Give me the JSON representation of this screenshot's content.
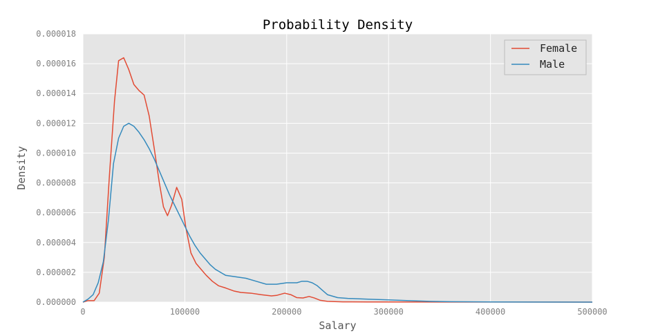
{
  "chart_data": {
    "type": "line",
    "title": "Probability Density",
    "xlabel": "Salary",
    "ylabel": "Density",
    "xlim": [
      0,
      500000
    ],
    "ylim": [
      0,
      1.8e-05
    ],
    "x_ticks": [
      0,
      100000,
      200000,
      300000,
      400000,
      500000
    ],
    "x_tick_labels": [
      "0",
      "100000",
      "200000",
      "300000",
      "400000",
      "500000"
    ],
    "y_ticks": [
      0,
      2e-06,
      4e-06,
      6e-06,
      8e-06,
      1e-05,
      1.2e-05,
      1.4e-05,
      1.6e-05,
      1.8e-05
    ],
    "y_tick_labels": [
      "0.000000",
      "0.000002",
      "0.000004",
      "0.000006",
      "0.000008",
      "0.000010",
      "0.000012",
      "0.000014",
      "0.000016",
      "0.000018"
    ],
    "grid": true,
    "legend_position": "top-right",
    "background": "#e5e5e5",
    "series": [
      {
        "name": "Female",
        "color": "#e24a33",
        "points": [
          [
            0,
            0
          ],
          [
            5000,
            1e-07
          ],
          [
            11000,
            1e-07
          ],
          [
            16000,
            6e-07
          ],
          [
            21000,
            3e-06
          ],
          [
            26000,
            8.5e-06
          ],
          [
            31000,
            1.35e-05
          ],
          [
            35000,
            1.62e-05
          ],
          [
            40000,
            1.64e-05
          ],
          [
            45000,
            1.56e-05
          ],
          [
            50000,
            1.46e-05
          ],
          [
            55000,
            1.42e-05
          ],
          [
            60000,
            1.39e-05
          ],
          [
            65000,
            1.25e-05
          ],
          [
            70000,
            1.03e-05
          ],
          [
            75000,
            8e-06
          ],
          [
            79000,
            6.4e-06
          ],
          [
            83000,
            5.8e-06
          ],
          [
            87000,
            6.5e-06
          ],
          [
            92000,
            7.7e-06
          ],
          [
            97000,
            6.9e-06
          ],
          [
            101000,
            5e-06
          ],
          [
            106000,
            3.3e-06
          ],
          [
            111000,
            2.6e-06
          ],
          [
            116000,
            2.2e-06
          ],
          [
            121000,
            1.8e-06
          ],
          [
            127000,
            1.4e-06
          ],
          [
            133000,
            1.1e-06
          ],
          [
            140000,
            9.5e-07
          ],
          [
            148000,
            7.5e-07
          ],
          [
            155000,
            6.5e-07
          ],
          [
            165000,
            6e-07
          ],
          [
            175000,
            5e-07
          ],
          [
            185000,
            4.2e-07
          ],
          [
            190000,
            4.5e-07
          ],
          [
            198000,
            6e-07
          ],
          [
            204000,
            5e-07
          ],
          [
            210000,
            3e-07
          ],
          [
            216000,
            2.8e-07
          ],
          [
            222000,
            3.8e-07
          ],
          [
            227000,
            2.8e-07
          ],
          [
            233000,
            1.2e-07
          ],
          [
            240000,
            5e-08
          ],
          [
            255000,
            2e-08
          ],
          [
            280000,
            1e-08
          ],
          [
            500000,
            0.0
          ]
        ]
      },
      {
        "name": "Male",
        "color": "#348abd",
        "points": [
          [
            0,
            0
          ],
          [
            5000,
            2e-07
          ],
          [
            10000,
            5e-07
          ],
          [
            15000,
            1.3e-06
          ],
          [
            20000,
            2.7e-06
          ],
          [
            25000,
            5.5e-06
          ],
          [
            30000,
            9.3e-06
          ],
          [
            35000,
            1.1e-05
          ],
          [
            40000,
            1.18e-05
          ],
          [
            45000,
            1.2e-05
          ],
          [
            50000,
            1.18e-05
          ],
          [
            55000,
            1.14e-05
          ],
          [
            60000,
            1.09e-05
          ],
          [
            65000,
            1.03e-05
          ],
          [
            70000,
            9.6e-06
          ],
          [
            75000,
            8.8e-06
          ],
          [
            80000,
            8e-06
          ],
          [
            85000,
            7.2e-06
          ],
          [
            90000,
            6.5e-06
          ],
          [
            95000,
            5.8e-06
          ],
          [
            100000,
            5.1e-06
          ],
          [
            105000,
            4.4e-06
          ],
          [
            110000,
            3.8e-06
          ],
          [
            115000,
            3.3e-06
          ],
          [
            120000,
            2.9e-06
          ],
          [
            125000,
            2.5e-06
          ],
          [
            130000,
            2.2e-06
          ],
          [
            135000,
            2e-06
          ],
          [
            140000,
            1.8e-06
          ],
          [
            150000,
            1.7e-06
          ],
          [
            160000,
            1.6e-06
          ],
          [
            170000,
            1.4e-06
          ],
          [
            180000,
            1.2e-06
          ],
          [
            190000,
            1.2e-06
          ],
          [
            200000,
            1.3e-06
          ],
          [
            210000,
            1.3e-06
          ],
          [
            215000,
            1.4e-06
          ],
          [
            220000,
            1.4e-06
          ],
          [
            225000,
            1.3e-06
          ],
          [
            230000,
            1.1e-06
          ],
          [
            235000,
            8e-07
          ],
          [
            240000,
            5e-07
          ],
          [
            245000,
            4e-07
          ],
          [
            250000,
            3e-07
          ],
          [
            260000,
            2.5e-07
          ],
          [
            280000,
            2e-07
          ],
          [
            300000,
            1.5e-07
          ],
          [
            320000,
            1e-07
          ],
          [
            340000,
            5e-08
          ],
          [
            360000,
            3e-08
          ],
          [
            400000,
            1e-08
          ],
          [
            500000,
            0.0
          ]
        ]
      }
    ]
  }
}
